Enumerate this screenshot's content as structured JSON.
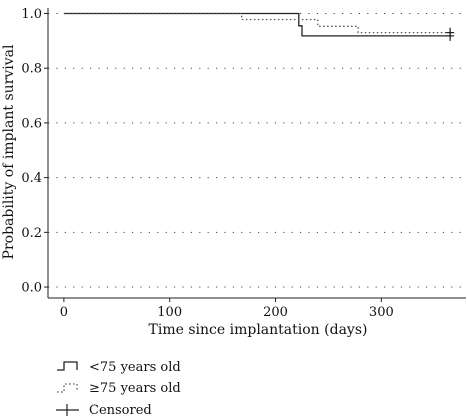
{
  "chart_data": {
    "type": "line",
    "subtype": "kaplan-meier step",
    "xlabel": "Time since implantation (days)",
    "ylabel": "Probability of implant survival",
    "xlim": [
      -15,
      380
    ],
    "ylim": [
      -0.04,
      1.02
    ],
    "xticks": [
      0,
      100,
      200,
      300
    ],
    "yticks": [
      0.0,
      0.2,
      0.4,
      0.6,
      0.8,
      1.0
    ],
    "xtick_labels": [
      "0",
      "100",
      "200",
      "300"
    ],
    "ytick_labels": [
      "0.0",
      "0.2",
      "0.4",
      "0.6",
      "0.8",
      "1.0"
    ],
    "grid": "horizontal dotted",
    "series": [
      {
        "name": "<75 years old",
        "style": "solid",
        "color": "#222222",
        "x": [
          0,
          222,
          222,
          225,
          225,
          365
        ],
        "y": [
          1.0,
          1.0,
          0.955,
          0.955,
          0.918,
          0.918
        ],
        "censored": [
          {
            "x": 365,
            "y": 0.918
          }
        ]
      },
      {
        "name": "≥75 years old",
        "style": "dotted",
        "color": "#555555",
        "x": [
          0,
          168,
          168,
          240,
          240,
          278,
          278,
          365
        ],
        "y": [
          1.0,
          1.0,
          0.978,
          0.978,
          0.953,
          0.953,
          0.93,
          0.93
        ],
        "censored": [
          {
            "x": 365,
            "y": 0.93
          }
        ]
      }
    ],
    "legend": {
      "placement": "bottom-left",
      "entries": [
        {
          "label": "<75 years old",
          "symbol": "solid-step"
        },
        {
          "label": "≥75 years old",
          "symbol": "dotted-step"
        },
        {
          "label": "Censored",
          "symbol": "cross"
        }
      ]
    }
  }
}
